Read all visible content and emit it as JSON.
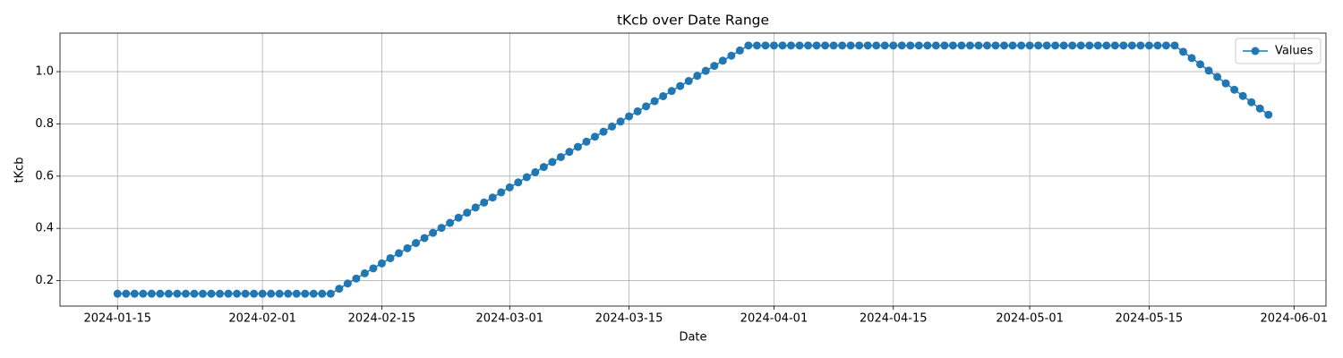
{
  "chart_data": {
    "type": "line",
    "title": "tKcb over Date Range",
    "x_label": "Date",
    "y_label": "tKcb",
    "x": [
      "2024-01-15",
      "2024-01-16",
      "2024-01-17",
      "2024-01-18",
      "2024-01-19",
      "2024-01-20",
      "2024-01-21",
      "2024-01-22",
      "2024-01-23",
      "2024-01-24",
      "2024-01-25",
      "2024-01-26",
      "2024-01-27",
      "2024-01-28",
      "2024-01-29",
      "2024-01-30",
      "2024-01-31",
      "2024-02-01",
      "2024-02-02",
      "2024-02-03",
      "2024-02-04",
      "2024-02-05",
      "2024-02-06",
      "2024-02-07",
      "2024-02-08",
      "2024-02-09",
      "2024-02-10",
      "2024-02-11",
      "2024-02-12",
      "2024-02-13",
      "2024-02-14",
      "2024-02-15",
      "2024-02-16",
      "2024-02-17",
      "2024-02-18",
      "2024-02-19",
      "2024-02-20",
      "2024-02-21",
      "2024-02-22",
      "2024-02-23",
      "2024-02-24",
      "2024-02-25",
      "2024-02-26",
      "2024-02-27",
      "2024-02-28",
      "2024-02-29",
      "2024-03-01",
      "2024-03-02",
      "2024-03-03",
      "2024-03-04",
      "2024-03-05",
      "2024-03-06",
      "2024-03-07",
      "2024-03-08",
      "2024-03-09",
      "2024-03-10",
      "2024-03-11",
      "2024-03-12",
      "2024-03-13",
      "2024-03-14",
      "2024-03-15",
      "2024-03-16",
      "2024-03-17",
      "2024-03-18",
      "2024-03-19",
      "2024-03-20",
      "2024-03-21",
      "2024-03-22",
      "2024-03-23",
      "2024-03-24",
      "2024-03-25",
      "2024-03-26",
      "2024-03-27",
      "2024-03-28",
      "2024-03-29",
      "2024-03-30",
      "2024-03-31",
      "2024-04-01",
      "2024-04-02",
      "2024-04-03",
      "2024-04-04",
      "2024-04-05",
      "2024-04-06",
      "2024-04-07",
      "2024-04-08",
      "2024-04-09",
      "2024-04-10",
      "2024-04-11",
      "2024-04-12",
      "2024-04-13",
      "2024-04-14",
      "2024-04-15",
      "2024-04-16",
      "2024-04-17",
      "2024-04-18",
      "2024-04-19",
      "2024-04-20",
      "2024-04-21",
      "2024-04-22",
      "2024-04-23",
      "2024-04-24",
      "2024-04-25",
      "2024-04-26",
      "2024-04-27",
      "2024-04-28",
      "2024-04-29",
      "2024-04-30",
      "2024-05-01",
      "2024-05-02",
      "2024-05-03",
      "2024-05-04",
      "2024-05-05",
      "2024-05-06",
      "2024-05-07",
      "2024-05-08",
      "2024-05-09",
      "2024-05-10",
      "2024-05-11",
      "2024-05-12",
      "2024-05-13",
      "2024-05-14",
      "2024-05-15",
      "2024-05-16",
      "2024-05-17",
      "2024-05-18",
      "2024-05-19",
      "2024-05-20",
      "2024-05-21",
      "2024-05-22",
      "2024-05-23",
      "2024-05-24",
      "2024-05-25",
      "2024-05-26",
      "2024-05-27",
      "2024-05-28",
      "2024-05-29"
    ],
    "series": [
      {
        "name": "Values",
        "color": "#1f77b4",
        "values": [
          0.15,
          0.15,
          0.15,
          0.15,
          0.15,
          0.15,
          0.15,
          0.15,
          0.15,
          0.15,
          0.15,
          0.15,
          0.15,
          0.15,
          0.15,
          0.15,
          0.15,
          0.15,
          0.15,
          0.15,
          0.15,
          0.15,
          0.15,
          0.15,
          0.15,
          0.15,
          0.169,
          0.189,
          0.208,
          0.228,
          0.247,
          0.266,
          0.286,
          0.305,
          0.324,
          0.344,
          0.363,
          0.383,
          0.402,
          0.421,
          0.441,
          0.46,
          0.48,
          0.499,
          0.518,
          0.538,
          0.557,
          0.576,
          0.596,
          0.615,
          0.635,
          0.654,
          0.673,
          0.693,
          0.712,
          0.732,
          0.751,
          0.77,
          0.79,
          0.809,
          0.829,
          0.848,
          0.867,
          0.887,
          0.906,
          0.926,
          0.945,
          0.964,
          0.984,
          1.003,
          1.022,
          1.042,
          1.061,
          1.081,
          1.1,
          1.1,
          1.1,
          1.1,
          1.1,
          1.1,
          1.1,
          1.1,
          1.1,
          1.1,
          1.1,
          1.1,
          1.1,
          1.1,
          1.1,
          1.1,
          1.1,
          1.1,
          1.1,
          1.1,
          1.1,
          1.1,
          1.1,
          1.1,
          1.1,
          1.1,
          1.1,
          1.1,
          1.1,
          1.1,
          1.1,
          1.1,
          1.1,
          1.1,
          1.1,
          1.1,
          1.1,
          1.1,
          1.1,
          1.1,
          1.1,
          1.1,
          1.1,
          1.1,
          1.1,
          1.1,
          1.1,
          1.1,
          1.1,
          1.1,
          1.1,
          1.076,
          1.052,
          1.028,
          1.004,
          0.98,
          0.955,
          0.931,
          0.907,
          0.883,
          0.859,
          0.835
        ]
      }
    ],
    "xlim": [
      "2024-01-08T06:00",
      "2024-06-04T18:00"
    ],
    "xticks": [
      "2024-01-15",
      "2024-02-01",
      "2024-02-15",
      "2024-03-01",
      "2024-03-15",
      "2024-04-01",
      "2024-04-15",
      "2024-05-01",
      "2024-05-15",
      "2024-06-01"
    ],
    "ylim": [
      0.1025,
      1.1475
    ],
    "yticks": [
      0.2,
      0.4,
      0.6,
      0.8,
      {
        "value": 1,
        "label": "1.0"
      }
    ],
    "grid": true,
    "legend": "upper right"
  }
}
